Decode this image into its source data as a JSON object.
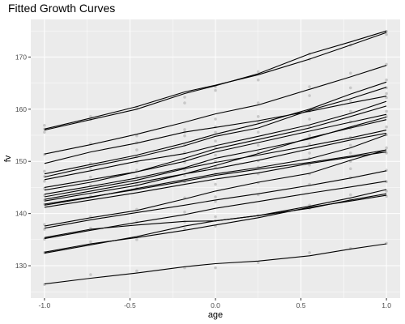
{
  "chart_data": {
    "type": "line",
    "title": "Fitted Growth Curves",
    "xlabel": "age",
    "ylabel": "fv",
    "xlim": [
      -1.08,
      1.08
    ],
    "ylim": [
      123.8,
      177.2
    ],
    "x_ticks": [
      -1.0,
      -0.5,
      0.0,
      0.5,
      1.0
    ],
    "x_tick_labels": [
      "-1.0",
      "-0.5",
      "0.0",
      "0.5",
      "1.0"
    ],
    "y_ticks": [
      130,
      140,
      150,
      160,
      170
    ],
    "y_tick_labels": [
      "130",
      "140",
      "150",
      "160",
      "170"
    ],
    "grid": true,
    "background": "#ebebeb",
    "grid_color": "#ffffff",
    "line_color": "#000000",
    "point_color": "#c8c8c8",
    "x": [
      -1.0,
      -0.73,
      -0.46,
      -0.18,
      0.0,
      0.25,
      0.55,
      0.79,
      1.0
    ],
    "series": [
      {
        "values": [
          156.2,
          158.3,
          160.5,
          163.3,
          164.6,
          166.6,
          169.6,
          172.3,
          174.7
        ]
      },
      {
        "values": [
          156.0,
          158.0,
          160.0,
          163.0,
          164.5,
          166.8,
          170.6,
          172.9,
          175.0
        ]
      },
      {
        "values": [
          151.4,
          153.2,
          155.2,
          157.5,
          159.1,
          160.8,
          163.8,
          166.2,
          168.4
        ]
      },
      {
        "values": [
          147.6,
          149.4,
          151.2,
          153.5,
          155.2,
          157.2,
          160.0,
          162.9,
          165.2
        ]
      },
      {
        "values": [
          147.0,
          149.0,
          150.8,
          153.0,
          154.8,
          156.4,
          159.8,
          162.0,
          164.2
        ]
      },
      {
        "values": [
          149.6,
          151.8,
          153.5,
          155.6,
          156.5,
          157.8,
          159.6,
          161.2,
          162.5
        ]
      },
      {
        "values": [
          146.5,
          148.2,
          150.0,
          151.5,
          153.0,
          154.8,
          157.0,
          159.2,
          161.5
        ]
      },
      {
        "values": [
          144.5,
          146.0,
          148.0,
          150.6,
          152.4,
          154.2,
          156.4,
          158.6,
          160.6
        ]
      },
      {
        "values": [
          145.0,
          146.5,
          148.0,
          150.0,
          151.8,
          153.6,
          155.8,
          157.5,
          159.0
        ]
      },
      {
        "values": [
          143.7,
          145.2,
          146.8,
          148.8,
          150.6,
          152.2,
          154.3,
          156.6,
          158.5
        ]
      },
      {
        "values": [
          142.7,
          144.3,
          145.9,
          147.6,
          149.2,
          151.5,
          154.5,
          156.4,
          158.0
        ]
      },
      {
        "values": [
          143.2,
          144.8,
          146.4,
          148.6,
          149.8,
          151.2,
          153.0,
          154.5,
          156.0
        ]
      },
      {
        "values": [
          142.4,
          143.9,
          145.4,
          147.6,
          148.6,
          150.2,
          152.4,
          154.1,
          155.4
        ]
      },
      {
        "values": [
          141.6,
          143.1,
          144.8,
          146.5,
          147.6,
          148.8,
          150.5,
          152.6,
          155.1
        ]
      },
      {
        "values": [
          141.8,
          143.2,
          144.6,
          146.2,
          147.3,
          148.5,
          149.8,
          151.0,
          152.2
        ]
      },
      {
        "values": [
          141.2,
          142.6,
          144.0,
          145.6,
          146.6,
          147.8,
          149.6,
          150.8,
          151.8
        ]
      },
      {
        "values": [
          137.6,
          139.2,
          140.6,
          142.8,
          144.3,
          146.0,
          147.7,
          150.2,
          152.2
        ]
      },
      {
        "values": [
          137.2,
          138.8,
          140.2,
          141.6,
          142.6,
          143.8,
          145.4,
          146.8,
          148.2
        ]
      },
      {
        "values": [
          135.2,
          136.8,
          138.3,
          139.8,
          141.0,
          142.3,
          143.9,
          145.1,
          146.2
        ]
      },
      {
        "values": [
          135.4,
          137.0,
          137.8,
          138.5,
          138.6,
          139.6,
          141.4,
          143.0,
          144.6
        ]
      },
      {
        "values": [
          132.4,
          134.0,
          135.6,
          137.6,
          138.6,
          139.6,
          141.0,
          142.6,
          143.8
        ]
      },
      {
        "values": [
          132.6,
          134.2,
          135.4,
          136.8,
          137.8,
          139.2,
          141.2,
          142.4,
          143.5
        ]
      },
      {
        "values": [
          126.5,
          127.6,
          128.6,
          129.8,
          130.4,
          130.9,
          131.9,
          133.2,
          134.2
        ]
      }
    ],
    "points": [
      [
        -1.0,
        156.9
      ],
      [
        -1.0,
        156.2
      ],
      [
        -1.0,
        155.6
      ],
      [
        -1.0,
        151.3
      ],
      [
        -1.0,
        148.1
      ],
      [
        -1.0,
        147.1
      ],
      [
        -1.0,
        146.2
      ],
      [
        -1.0,
        144.8
      ],
      [
        -1.0,
        143.5
      ],
      [
        -1.0,
        142.6
      ],
      [
        -1.0,
        141.8
      ],
      [
        -1.0,
        137.9
      ],
      [
        -1.0,
        137.0
      ],
      [
        -1.0,
        135.1
      ],
      [
        -1.0,
        132.5
      ],
      [
        -1.0,
        126.4
      ],
      [
        -0.73,
        158.6
      ],
      [
        -0.73,
        158.0
      ],
      [
        -0.73,
        153.4
      ],
      [
        -0.73,
        149.6
      ],
      [
        -0.73,
        148.6
      ],
      [
        -0.73,
        147.0
      ],
      [
        -0.73,
        145.4
      ],
      [
        -0.73,
        143.4
      ],
      [
        -0.73,
        139.4
      ],
      [
        -0.73,
        137.2
      ],
      [
        -0.73,
        134.6
      ],
      [
        -0.73,
        128.3
      ],
      [
        -0.46,
        160.4
      ],
      [
        -0.46,
        154.9
      ],
      [
        -0.46,
        153.6
      ],
      [
        -0.46,
        152.2
      ],
      [
        -0.46,
        150.9
      ],
      [
        -0.46,
        149.8
      ],
      [
        -0.46,
        148.3
      ],
      [
        -0.46,
        147.1
      ],
      [
        -0.46,
        145.6
      ],
      [
        -0.46,
        144.8
      ],
      [
        -0.46,
        140.8
      ],
      [
        -0.46,
        138.4
      ],
      [
        -0.46,
        135.0
      ],
      [
        -0.46,
        129.0
      ],
      [
        -0.18,
        162.3
      ],
      [
        -0.18,
        161.2
      ],
      [
        -0.18,
        156.1
      ],
      [
        -0.18,
        155.6
      ],
      [
        -0.18,
        154.9
      ],
      [
        -0.18,
        153.1
      ],
      [
        -0.18,
        151.7
      ],
      [
        -0.18,
        150.4
      ],
      [
        -0.18,
        149.8
      ],
      [
        -0.18,
        148.3
      ],
      [
        -0.18,
        147.3
      ],
      [
        -0.18,
        146.1
      ],
      [
        -0.18,
        143.0
      ],
      [
        -0.18,
        140.3
      ],
      [
        -0.18,
        138.4
      ],
      [
        -0.18,
        137.1
      ],
      [
        -0.18,
        129.6
      ],
      [
        0.0,
        164.3
      ],
      [
        0.0,
        163.6
      ],
      [
        0.0,
        158.1
      ],
      [
        0.0,
        156.6
      ],
      [
        0.0,
        155.6
      ],
      [
        0.0,
        153.9
      ],
      [
        0.0,
        152.7
      ],
      [
        0.0,
        151.2
      ],
      [
        0.0,
        150.0
      ],
      [
        0.0,
        148.9
      ],
      [
        0.0,
        147.6
      ],
      [
        0.0,
        145.6
      ],
      [
        0.0,
        143.2
      ],
      [
        0.0,
        142.3
      ],
      [
        0.0,
        139.4
      ],
      [
        0.0,
        138.7
      ],
      [
        0.0,
        137.6
      ],
      [
        0.0,
        129.6
      ],
      [
        0.25,
        167.2
      ],
      [
        0.25,
        165.6
      ],
      [
        0.25,
        161.2
      ],
      [
        0.25,
        158.6
      ],
      [
        0.25,
        157.6
      ],
      [
        0.25,
        155.6
      ],
      [
        0.25,
        153.1
      ],
      [
        0.25,
        151.7
      ],
      [
        0.25,
        150.1
      ],
      [
        0.25,
        148.9
      ],
      [
        0.25,
        147.6
      ],
      [
        0.25,
        145.9
      ],
      [
        0.25,
        143.6
      ],
      [
        0.25,
        139.6
      ],
      [
        0.25,
        130.6
      ],
      [
        0.55,
        170.6
      ],
      [
        0.55,
        169.6
      ],
      [
        0.55,
        164.3
      ],
      [
        0.55,
        162.6
      ],
      [
        0.55,
        159.6
      ],
      [
        0.55,
        158.1
      ],
      [
        0.55,
        156.6
      ],
      [
        0.55,
        155.0
      ],
      [
        0.55,
        153.3
      ],
      [
        0.55,
        151.6
      ],
      [
        0.55,
        150.6
      ],
      [
        0.55,
        149.3
      ],
      [
        0.55,
        147.6
      ],
      [
        0.55,
        145.6
      ],
      [
        0.55,
        141.6
      ],
      [
        0.55,
        141.0
      ],
      [
        0.55,
        132.5
      ],
      [
        0.79,
        172.3
      ],
      [
        0.79,
        166.9
      ],
      [
        0.79,
        164.1
      ],
      [
        0.79,
        161.6
      ],
      [
        0.79,
        159.6
      ],
      [
        0.79,
        157.6
      ],
      [
        0.79,
        156.3
      ],
      [
        0.79,
        154.6
      ],
      [
        0.79,
        153.1
      ],
      [
        0.79,
        151.6
      ],
      [
        0.79,
        150.0
      ],
      [
        0.79,
        148.6
      ],
      [
        0.79,
        146.9
      ],
      [
        0.79,
        143.6
      ],
      [
        0.79,
        142.6
      ],
      [
        0.79,
        133.3
      ],
      [
        1.0,
        174.9
      ],
      [
        1.0,
        174.3
      ],
      [
        1.0,
        168.6
      ],
      [
        1.0,
        165.6
      ],
      [
        1.0,
        164.1
      ],
      [
        1.0,
        163.0
      ],
      [
        1.0,
        162.2
      ],
      [
        1.0,
        159.6
      ],
      [
        1.0,
        158.6
      ],
      [
        1.0,
        156.6
      ],
      [
        1.0,
        155.1
      ],
      [
        1.0,
        152.6
      ],
      [
        1.0,
        151.6
      ],
      [
        1.0,
        148.3
      ],
      [
        1.0,
        146.1
      ],
      [
        1.0,
        144.3
      ],
      [
        1.0,
        143.3
      ],
      [
        1.0,
        134.3
      ]
    ]
  }
}
